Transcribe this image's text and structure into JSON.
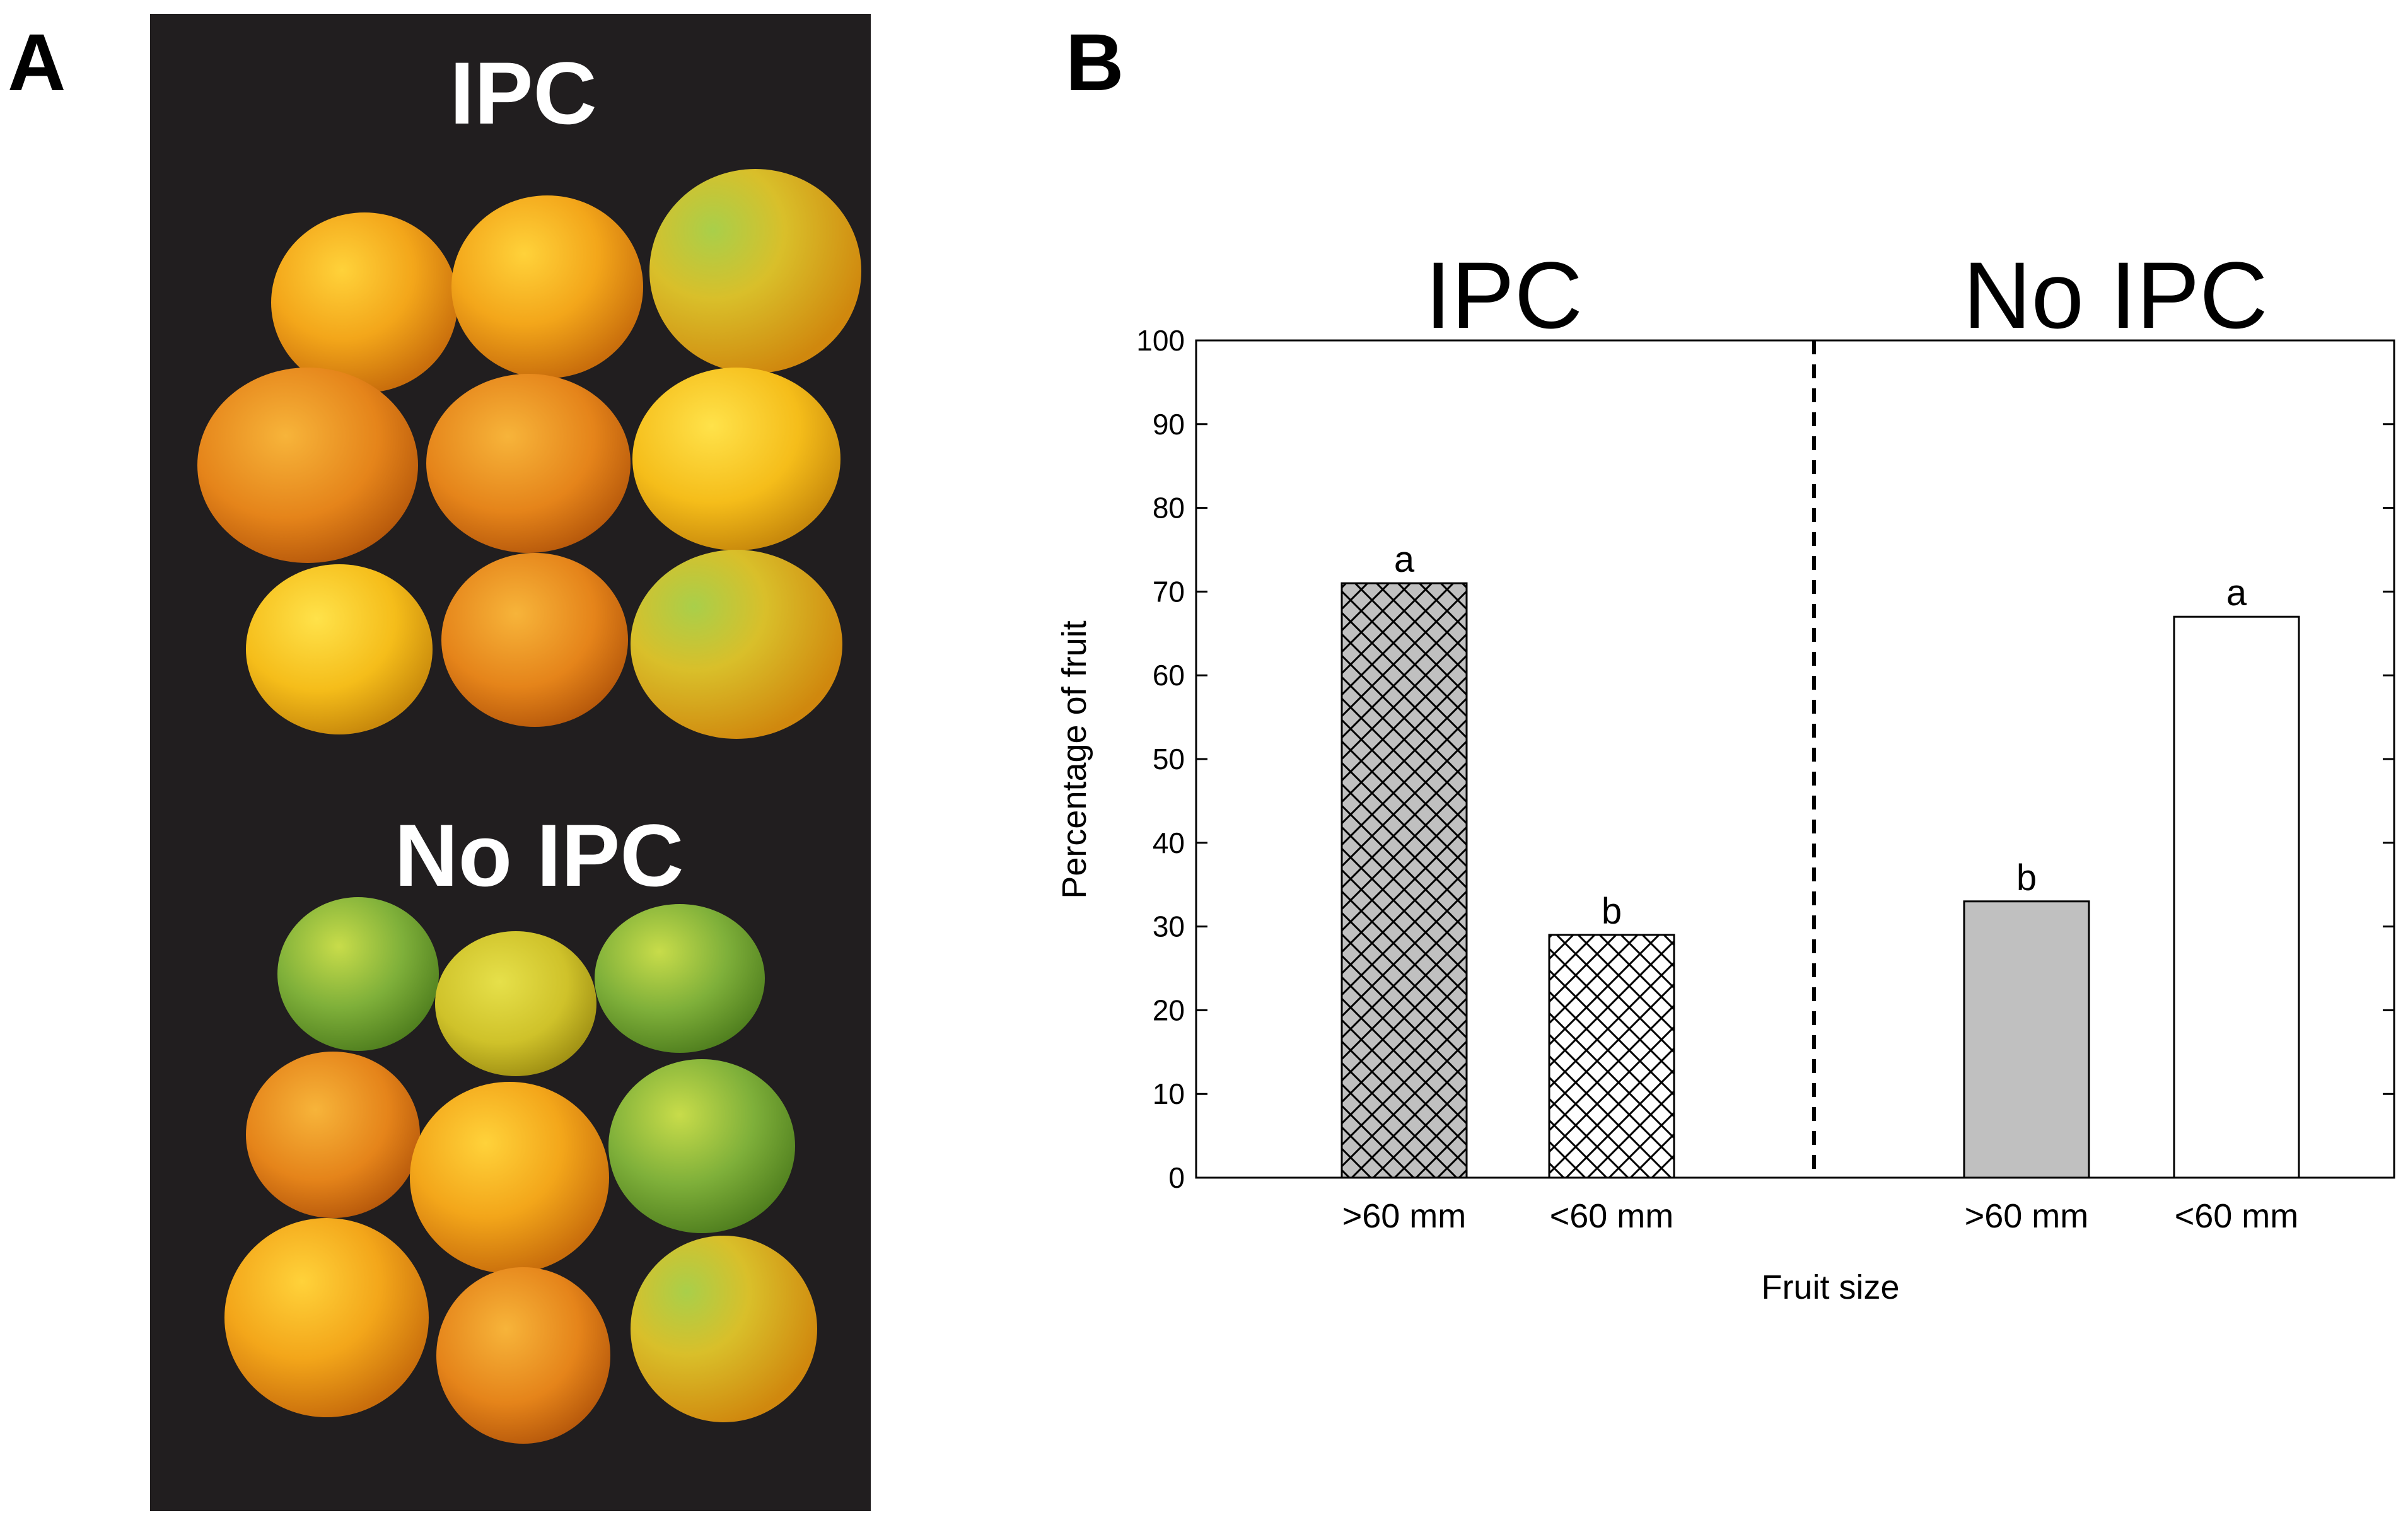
{
  "panels": {
    "a_label": "A",
    "b_label": "B"
  },
  "photo": {
    "top_label": "IPC",
    "bottom_label": "No IPC"
  },
  "chart_data": {
    "type": "bar",
    "groups": [
      {
        "name": "IPC",
        "bars": [
          {
            "category": ">60 mm",
            "value": 71,
            "letter": "a",
            "style": "crosshatch-gray"
          },
          {
            "category": "<60 mm",
            "value": 29,
            "letter": "b",
            "style": "crosshatch-white"
          }
        ]
      },
      {
        "name": "No IPC",
        "bars": [
          {
            "category": ">60 mm",
            "value": 33,
            "letter": "b",
            "style": "solid-gray"
          },
          {
            "category": "<60 mm",
            "value": 67,
            "letter": "a",
            "style": "solid-white"
          }
        ]
      }
    ],
    "xlabel": "Fruit size",
    "ylabel": "Percentage of fruit",
    "ylim": [
      0,
      100
    ],
    "yticks": [
      0,
      10,
      20,
      30,
      40,
      50,
      60,
      70,
      80,
      90,
      100
    ],
    "divider": "dashed vertical line between groups",
    "grid": false
  },
  "colors": {
    "bar_gray": "#c0c0c0",
    "bar_white": "#ffffff",
    "photo_bg": "#1c1a1b"
  }
}
